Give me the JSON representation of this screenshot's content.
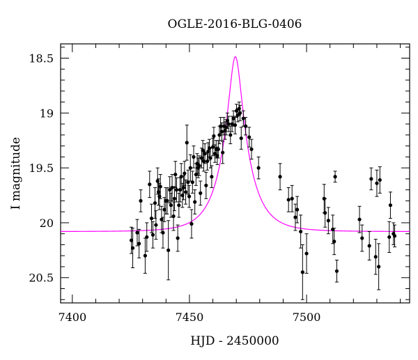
{
  "chart_data": {
    "type": "scatter",
    "title": "OGLE-2016-BLG-0406",
    "xlabel": "HJD - 2450000",
    "ylabel": "I magnitude",
    "xlim": [
      7395,
      7544
    ],
    "ylim": [
      20.73,
      18.37
    ],
    "y_inverted": true,
    "xticks": [
      7400,
      7450,
      7500
    ],
    "xtick_labels": [
      "7400",
      "7450",
      "7500"
    ],
    "yticks": [
      18.5,
      19,
      19.5,
      20,
      20.5
    ],
    "ytick_labels": [
      "18.5",
      "19",
      "19.5",
      "20",
      "20.5"
    ],
    "grid": false,
    "colors": {
      "points": "#000000",
      "model": "#ff00ff"
    },
    "series": [
      {
        "type": "scatter_errorbar",
        "points": [
          {
            "x": 7425.2,
            "y": 20.16,
            "err": 0.12
          },
          {
            "x": 7425.8,
            "y": 20.23,
            "err": 0.18
          },
          {
            "x": 7427.7,
            "y": 20.09,
            "err": 0.12
          },
          {
            "x": 7428.5,
            "y": 20.19,
            "err": 0.13
          },
          {
            "x": 7429.2,
            "y": 19.8,
            "err": 0.1
          },
          {
            "x": 7431.1,
            "y": 20.3,
            "err": 0.16
          },
          {
            "x": 7431.8,
            "y": 20.13,
            "err": 0.13
          },
          {
            "x": 7433.0,
            "y": 19.65,
            "err": 0.12
          },
          {
            "x": 7433.8,
            "y": 19.96,
            "err": 0.13
          },
          {
            "x": 7434.4,
            "y": 20.11,
            "err": 0.12
          },
          {
            "x": 7435.3,
            "y": 19.82,
            "err": 0.14
          },
          {
            "x": 7435.7,
            "y": 20.02,
            "err": 0.13
          },
          {
            "x": 7436.4,
            "y": 19.62,
            "err": 0.12
          },
          {
            "x": 7436.8,
            "y": 19.72,
            "err": 0.12
          },
          {
            "x": 7437.2,
            "y": 19.76,
            "err": 0.12
          },
          {
            "x": 7437.6,
            "y": 19.67,
            "err": 0.11
          },
          {
            "x": 7438.1,
            "y": 19.97,
            "err": 0.12
          },
          {
            "x": 7438.7,
            "y": 20.09,
            "err": 0.14
          },
          {
            "x": 7439.3,
            "y": 19.88,
            "err": 0.11
          },
          {
            "x": 7439.9,
            "y": 19.8,
            "err": 0.12
          },
          {
            "x": 7440.5,
            "y": 19.8,
            "err": 0.12
          },
          {
            "x": 7441.0,
            "y": 20.25,
            "err": 0.27
          },
          {
            "x": 7441.6,
            "y": 19.7,
            "err": 0.12
          },
          {
            "x": 7442.1,
            "y": 19.84,
            "err": 0.11
          },
          {
            "x": 7442.6,
            "y": 19.68,
            "err": 0.12
          },
          {
            "x": 7443.2,
            "y": 19.94,
            "err": 0.13
          },
          {
            "x": 7443.6,
            "y": 19.78,
            "err": 0.11
          },
          {
            "x": 7444.0,
            "y": 19.56,
            "err": 0.12
          },
          {
            "x": 7444.5,
            "y": 19.7,
            "err": 0.11
          },
          {
            "x": 7445.0,
            "y": 20.14,
            "err": 0.12
          },
          {
            "x": 7445.5,
            "y": 19.84,
            "err": 0.11
          },
          {
            "x": 7446.0,
            "y": 19.7,
            "err": 0.11
          },
          {
            "x": 7446.5,
            "y": 19.58,
            "err": 0.12
          },
          {
            "x": 7447.0,
            "y": 19.75,
            "err": 0.11
          },
          {
            "x": 7447.5,
            "y": 19.68,
            "err": 0.11
          },
          {
            "x": 7447.9,
            "y": 19.55,
            "err": 0.11
          },
          {
            "x": 7448.4,
            "y": 19.72,
            "err": 0.11
          },
          {
            "x": 7448.9,
            "y": 19.27,
            "err": 0.16
          },
          {
            "x": 7449.4,
            "y": 19.63,
            "err": 0.11
          },
          {
            "x": 7449.9,
            "y": 19.76,
            "err": 0.1
          },
          {
            "x": 7450.4,
            "y": 19.5,
            "err": 0.12
          },
          {
            "x": 7450.9,
            "y": 20.01,
            "err": 0.13
          },
          {
            "x": 7451.3,
            "y": 19.63,
            "err": 0.1
          },
          {
            "x": 7451.8,
            "y": 19.4,
            "err": 0.1
          },
          {
            "x": 7452.3,
            "y": 19.81,
            "err": 0.11
          },
          {
            "x": 7452.8,
            "y": 19.56,
            "err": 0.1
          },
          {
            "x": 7453.3,
            "y": 19.46,
            "err": 0.09
          },
          {
            "x": 7453.7,
            "y": 19.5,
            "err": 0.09
          },
          {
            "x": 7454.2,
            "y": 19.48,
            "err": 0.09
          },
          {
            "x": 7454.7,
            "y": 19.73,
            "err": 0.11
          },
          {
            "x": 7455.2,
            "y": 19.41,
            "err": 0.09
          },
          {
            "x": 7455.7,
            "y": 19.34,
            "err": 0.09
          },
          {
            "x": 7456.1,
            "y": 19.44,
            "err": 0.09
          },
          {
            "x": 7456.6,
            "y": 19.37,
            "err": 0.09
          },
          {
            "x": 7457.1,
            "y": 19.66,
            "err": 0.12
          },
          {
            "x": 7457.6,
            "y": 19.44,
            "err": 0.08
          },
          {
            "x": 7458.0,
            "y": 19.35,
            "err": 0.08
          },
          {
            "x": 7458.5,
            "y": 19.32,
            "err": 0.08
          },
          {
            "x": 7459.0,
            "y": 19.41,
            "err": 0.09
          },
          {
            "x": 7459.5,
            "y": 19.58,
            "err": 0.1
          },
          {
            "x": 7460.0,
            "y": 19.31,
            "err": 0.08
          },
          {
            "x": 7460.4,
            "y": 19.21,
            "err": 0.08
          },
          {
            "x": 7460.9,
            "y": 19.37,
            "err": 0.08
          },
          {
            "x": 7461.4,
            "y": 19.33,
            "err": 0.08
          },
          {
            "x": 7461.9,
            "y": 19.39,
            "err": 0.08
          },
          {
            "x": 7462.3,
            "y": 19.33,
            "err": 0.08
          },
          {
            "x": 7462.8,
            "y": 19.2,
            "err": 0.08
          },
          {
            "x": 7463.3,
            "y": 19.12,
            "err": 0.08
          },
          {
            "x": 7463.8,
            "y": 19.17,
            "err": 0.08
          },
          {
            "x": 7464.2,
            "y": 19.36,
            "err": 0.1
          },
          {
            "x": 7464.7,
            "y": 19.12,
            "err": 0.08
          },
          {
            "x": 7465.2,
            "y": 19.16,
            "err": 0.08
          },
          {
            "x": 7465.7,
            "y": 19.13,
            "err": 0.07
          },
          {
            "x": 7466.2,
            "y": 19.07,
            "err": 0.07
          },
          {
            "x": 7466.7,
            "y": 19.1,
            "err": 0.07
          },
          {
            "x": 7467.5,
            "y": 19.2,
            "err": 0.08
          },
          {
            "x": 7468.2,
            "y": 19.1,
            "err": 0.07
          },
          {
            "x": 7468.8,
            "y": 19.05,
            "err": 0.07
          },
          {
            "x": 7469.5,
            "y": 19.11,
            "err": 0.08
          },
          {
            "x": 7470.1,
            "y": 18.98,
            "err": 0.06
          },
          {
            "x": 7470.6,
            "y": 19.02,
            "err": 0.06
          },
          {
            "x": 7471.2,
            "y": 18.96,
            "err": 0.06
          },
          {
            "x": 7471.6,
            "y": 19.0,
            "err": 0.07
          },
          {
            "x": 7472.1,
            "y": 19.23,
            "err": 0.1
          },
          {
            "x": 7473.0,
            "y": 19.05,
            "err": 0.07
          },
          {
            "x": 7474.0,
            "y": 19.12,
            "err": 0.08
          },
          {
            "x": 7475.5,
            "y": 19.22,
            "err": 0.09
          },
          {
            "x": 7476.5,
            "y": 19.33,
            "err": 0.09
          },
          {
            "x": 7479.5,
            "y": 19.5,
            "err": 0.1
          },
          {
            "x": 7488.7,
            "y": 19.58,
            "err": 0.12
          },
          {
            "x": 7492.3,
            "y": 19.79,
            "err": 0.11
          },
          {
            "x": 7493.8,
            "y": 19.78,
            "err": 0.12
          },
          {
            "x": 7495.2,
            "y": 19.95,
            "err": 0.12
          },
          {
            "x": 7496.0,
            "y": 19.88,
            "err": 0.12
          },
          {
            "x": 7497.5,
            "y": 20.08,
            "err": 0.15
          },
          {
            "x": 7498.3,
            "y": 20.45,
            "err": 0.25
          },
          {
            "x": 7500.0,
            "y": 20.28,
            "err": 0.18
          },
          {
            "x": 7507.5,
            "y": 19.78,
            "err": 0.13
          },
          {
            "x": 7507.9,
            "y": 19.91,
            "err": 0.13
          },
          {
            "x": 7509.3,
            "y": 19.98,
            "err": 0.12
          },
          {
            "x": 7511.2,
            "y": 20.06,
            "err": 0.13
          },
          {
            "x": 7511.8,
            "y": 20.17,
            "err": 0.12
          },
          {
            "x": 7512.2,
            "y": 19.58,
            "err": 0.05
          },
          {
            "x": 7512.9,
            "y": 20.44,
            "err": 0.1
          },
          {
            "x": 7522.6,
            "y": 19.97,
            "err": 0.12
          },
          {
            "x": 7523.7,
            "y": 20.14,
            "err": 0.12
          },
          {
            "x": 7526.8,
            "y": 20.21,
            "err": 0.13
          },
          {
            "x": 7527.6,
            "y": 19.6,
            "err": 0.1
          },
          {
            "x": 7529.5,
            "y": 20.31,
            "err": 0.16
          },
          {
            "x": 7530.0,
            "y": 19.64,
            "err": 0.12
          },
          {
            "x": 7530.8,
            "y": 20.4,
            "err": 0.21
          },
          {
            "x": 7531.3,
            "y": 19.61,
            "err": 0.12
          },
          {
            "x": 7535.3,
            "y": 20.13,
            "err": 0.14
          },
          {
            "x": 7535.8,
            "y": 19.84,
            "err": 0.12
          },
          {
            "x": 7537.1,
            "y": 20.1,
            "err": 0.1
          },
          {
            "x": 7537.6,
            "y": 20.12,
            "err": 0.1
          }
        ]
      },
      {
        "type": "model_line",
        "model": {
          "t0": 7469.6,
          "tE": 10.8,
          "u0": 0.235,
          "I_base": 20.08
        }
      }
    ]
  }
}
